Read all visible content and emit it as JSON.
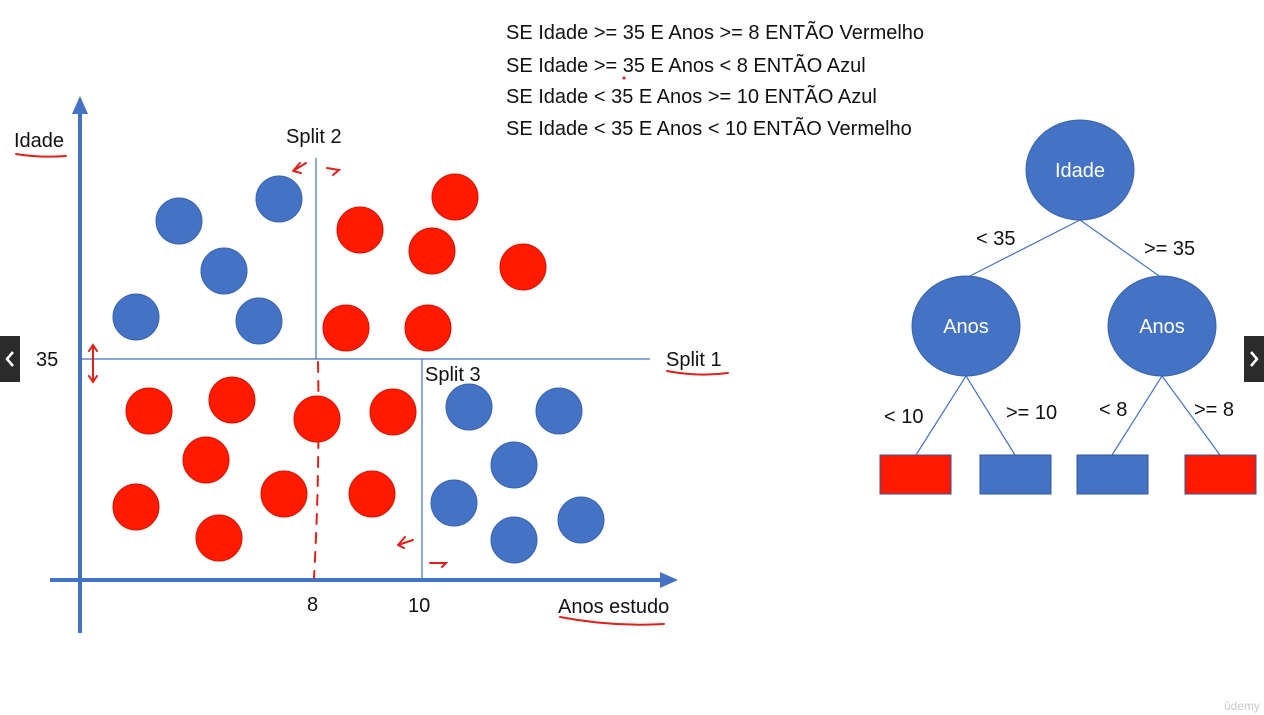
{
  "rules": [
    "SE Idade >= 35 E Anos >= 8 ENTÃO Vermelho",
    "SE Idade >= 35 E Anos < 8 ENTÃO Azul",
    "SE Idade < 35 E Anos >= 10 ENTÃO Azul",
    "SE Idade < 35 E Anos < 10 ENTÃO Vermelho"
  ],
  "scatter": {
    "y_axis_label": "Idade",
    "x_axis_label": "Anos estudo",
    "y_split_tick": "35",
    "x_split_ticks": [
      "8",
      "10"
    ],
    "split_labels": {
      "split1": "Split 1",
      "split2": "Split 2",
      "split3": "Split 3"
    },
    "colors": {
      "blue": "#4472c4",
      "red": "#ff1a00",
      "axis": "#4472c4",
      "annotation": "#e0201c"
    }
  },
  "tree": {
    "root": "Idade",
    "left_node": "Anos",
    "right_node": "Anos",
    "edge_labels": {
      "root_left": "< 35",
      "root_right": ">= 35",
      "left_left": "< 10",
      "left_right": ">= 10",
      "right_left": "< 8",
      "right_right": ">= 8"
    },
    "leaves": [
      "red",
      "blue",
      "blue",
      "red"
    ]
  },
  "nav": {
    "prev_icon": "chevron-left-icon",
    "next_icon": "chevron-right-icon"
  },
  "watermark": "ûdemy"
}
